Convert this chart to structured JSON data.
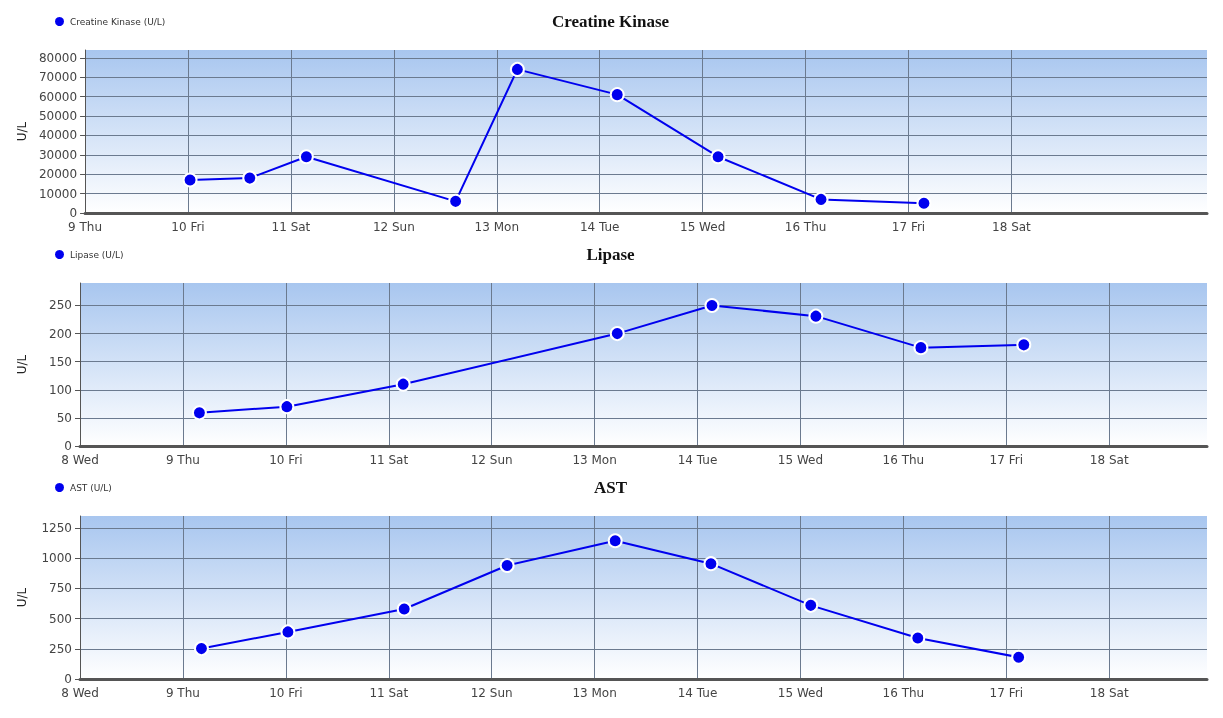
{
  "chart_data": [
    {
      "type": "line",
      "title": "Creatine Kinase",
      "ylabel": "U/L",
      "legend": "top left",
      "grid": true,
      "marker": "circle",
      "line_style": "solid",
      "xlim": [
        9,
        19.9
      ],
      "xticks": [
        {
          "value": 9,
          "label": "9 Thu"
        },
        {
          "value": 10,
          "label": "10 Fri"
        },
        {
          "value": 11,
          "label": "11 Sat"
        },
        {
          "value": 12,
          "label": "12 Sun"
        },
        {
          "value": 13,
          "label": "13 Mon"
        },
        {
          "value": 14,
          "label": "14 Tue"
        },
        {
          "value": 15,
          "label": "15 Wed"
        },
        {
          "value": 16,
          "label": "16 Thu"
        },
        {
          "value": 17,
          "label": "17 Fri"
        },
        {
          "value": 18,
          "label": "18 Sat"
        }
      ],
      "ylim": [
        0,
        84000
      ],
      "yticks": [
        0,
        10000,
        20000,
        30000,
        40000,
        50000,
        60000,
        70000,
        80000
      ],
      "series": [
        {
          "name": "Creatine Kinase (U/L)",
          "color": "#0000ee",
          "x": [
            10.02,
            10.6,
            11.15,
            12.6,
            13.2,
            14.17,
            15.15,
            16.15,
            17.15
          ],
          "values": [
            17000,
            18000,
            29000,
            6000,
            74000,
            61000,
            29000,
            7000,
            5000
          ]
        }
      ]
    },
    {
      "type": "line",
      "title": "Lipase",
      "ylabel": "U/L",
      "legend": "top left",
      "grid": true,
      "marker": "circle",
      "line_style": "solid",
      "xlim": [
        8,
        18.95
      ],
      "xticks": [
        {
          "value": 8,
          "label": "8 Wed"
        },
        {
          "value": 9,
          "label": "9 Thu"
        },
        {
          "value": 10,
          "label": "10 Fri"
        },
        {
          "value": 11,
          "label": "11 Sat"
        },
        {
          "value": 12,
          "label": "12 Sun"
        },
        {
          "value": 13,
          "label": "13 Mon"
        },
        {
          "value": 14,
          "label": "14 Tue"
        },
        {
          "value": 15,
          "label": "15 Wed"
        },
        {
          "value": 16,
          "label": "16 Thu"
        },
        {
          "value": 17,
          "label": "17 Fri"
        },
        {
          "value": 18,
          "label": "18 Sat"
        }
      ],
      "ylim": [
        0,
        290
      ],
      "yticks": [
        0,
        50,
        100,
        150,
        200,
        250
      ],
      "series": [
        {
          "name": "Lipase (U/L)",
          "color": "#0000ee",
          "x": [
            9.16,
            10.01,
            11.14,
            13.22,
            14.14,
            15.15,
            16.17,
            17.17
          ],
          "values": [
            59,
            70,
            110,
            200,
            250,
            231,
            175,
            180
          ]
        }
      ]
    },
    {
      "type": "line",
      "title": "AST",
      "ylabel": "U/L",
      "legend": "top left",
      "grid": true,
      "marker": "circle",
      "line_style": "solid",
      "xlim": [
        8,
        18.95
      ],
      "xticks": [
        {
          "value": 8,
          "label": "8 Wed"
        },
        {
          "value": 9,
          "label": "9 Thu"
        },
        {
          "value": 10,
          "label": "10 Fri"
        },
        {
          "value": 11,
          "label": "11 Sat"
        },
        {
          "value": 12,
          "label": "12 Sun"
        },
        {
          "value": 13,
          "label": "13 Mon"
        },
        {
          "value": 14,
          "label": "14 Tue"
        },
        {
          "value": 15,
          "label": "15 Wed"
        },
        {
          "value": 16,
          "label": "16 Thu"
        },
        {
          "value": 17,
          "label": "17 Fri"
        },
        {
          "value": 18,
          "label": "18 Sat"
        }
      ],
      "ylim": [
        0,
        1350
      ],
      "yticks": [
        0,
        250,
        500,
        750,
        1000,
        1250
      ],
      "series": [
        {
          "name": "AST (U/L)",
          "color": "#0000ee",
          "x": [
            9.18,
            10.02,
            11.15,
            12.15,
            13.2,
            14.13,
            15.1,
            16.14,
            17.12
          ],
          "values": [
            252,
            390,
            580,
            940,
            1145,
            955,
            610,
            340,
            180
          ]
        }
      ]
    }
  ]
}
